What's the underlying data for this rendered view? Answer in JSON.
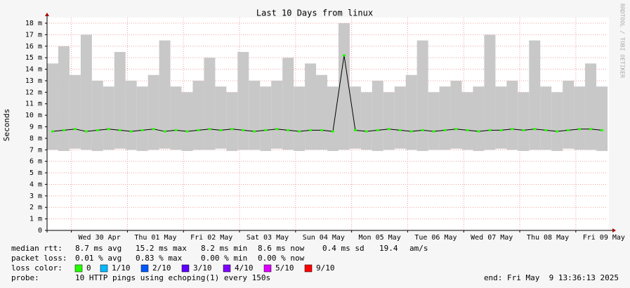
{
  "chart_data": {
    "type": "smoke",
    "title": "Last 10 Days from linux",
    "y_label": "Seconds",
    "side_label": "RRDTOOL / TOBI OETIKER",
    "xlim": [
      0,
      10
    ],
    "xticks": [
      {
        "value": 0.434,
        "label": "Wed 30 Apr"
      },
      {
        "value": 1.434,
        "label": "Thu 01 May"
      },
      {
        "value": 2.434,
        "label": "Fri 02 May"
      },
      {
        "value": 3.434,
        "label": "Sat 03 May"
      },
      {
        "value": 4.434,
        "label": "Sun 04 May"
      },
      {
        "value": 5.434,
        "label": "Mon 05 May"
      },
      {
        "value": 6.434,
        "label": "Tue 06 May"
      },
      {
        "value": 7.434,
        "label": "Wed 07 May"
      },
      {
        "value": 8.434,
        "label": "Thu 08 May"
      },
      {
        "value": 9.434,
        "label": "Fri 09 May"
      }
    ],
    "ylim": [
      0,
      0.018
    ],
    "yticks": [
      0,
      {
        "value": 0.001,
        "label": "1 m"
      },
      {
        "value": 0.002,
        "label": "2 m"
      },
      {
        "value": 0.003,
        "label": "3 m"
      },
      {
        "value": 0.004,
        "label": "4 m"
      },
      {
        "value": 0.005,
        "label": "5 m"
      },
      {
        "value": 0.006,
        "label": "6 m"
      },
      {
        "value": 0.007,
        "label": "7 m"
      },
      {
        "value": 0.008,
        "label": "8 m"
      },
      {
        "value": 0.009,
        "label": "9 m"
      },
      {
        "value": 0.01,
        "label": "10 m"
      },
      {
        "value": 0.011,
        "label": "11 m"
      },
      {
        "value": 0.012,
        "label": "12 m"
      },
      {
        "value": 0.013,
        "label": "13 m"
      },
      {
        "value": 0.014,
        "label": "14 m"
      },
      {
        "value": 0.015,
        "label": "15 m"
      },
      {
        "value": 0.016,
        "label": "16 m"
      },
      {
        "value": 0.017,
        "label": "17 m"
      },
      {
        "value": 0.018,
        "label": "18 m"
      }
    ],
    "grid": true,
    "smoke_color": "#c8c8c8",
    "line_color": "#000000",
    "dot_color": "#26ff00",
    "x": [
      0,
      0.2,
      0.4,
      0.6,
      0.8,
      1,
      1.2,
      1.4,
      1.6,
      1.8,
      2,
      2.2,
      2.4,
      2.6,
      2.8,
      3,
      3.2,
      3.4,
      3.6,
      3.8,
      4,
      4.2,
      4.4,
      4.6,
      4.8,
      5,
      5.2,
      5.4,
      5.6,
      5.8,
      6,
      6.2,
      6.4,
      6.6,
      6.8,
      7,
      7.2,
      7.4,
      7.6,
      7.8,
      8,
      8.2,
      8.4,
      8.6,
      8.8,
      9,
      9.2,
      9.4,
      9.6,
      9.8
    ],
    "values": [
      0.0086,
      0.0087,
      0.0088,
      0.0086,
      0.0087,
      0.0088,
      0.0087,
      0.0086,
      0.0087,
      0.0088,
      0.0086,
      0.0087,
      0.0086,
      0.0087,
      0.0088,
      0.0087,
      0.0088,
      0.0087,
      0.0086,
      0.0087,
      0.0088,
      0.0087,
      0.0086,
      0.0087,
      0.0087,
      0.0086,
      0.0152,
      0.0087,
      0.0086,
      0.0087,
      0.0088,
      0.0087,
      0.0086,
      0.0087,
      0.0086,
      0.0087,
      0.0088,
      0.0087,
      0.0086,
      0.0087,
      0.0087,
      0.0088,
      0.0087,
      0.0088,
      0.0087,
      0.0086,
      0.0087,
      0.0088,
      0.0088,
      0.0087
    ],
    "upper": [
      0.0145,
      0.016,
      0.0135,
      0.017,
      0.013,
      0.0125,
      0.0155,
      0.013,
      0.0125,
      0.0135,
      0.0165,
      0.0125,
      0.012,
      0.013,
      0.015,
      0.0125,
      0.012,
      0.0155,
      0.013,
      0.0125,
      0.013,
      0.015,
      0.0125,
      0.0145,
      0.0135,
      0.0125,
      0.018,
      0.0125,
      0.012,
      0.013,
      0.012,
      0.0125,
      0.0135,
      0.0165,
      0.012,
      0.0125,
      0.013,
      0.012,
      0.0125,
      0.017,
      0.0125,
      0.013,
      0.012,
      0.0165,
      0.0125,
      0.012,
      0.013,
      0.0125,
      0.0145,
      0.0125
    ],
    "lower": [
      0.007,
      0.0069,
      0.0071,
      0.007,
      0.0069,
      0.007,
      0.0071,
      0.007,
      0.0069,
      0.007,
      0.0071,
      0.007,
      0.0069,
      0.007,
      0.007,
      0.0071,
      0.0069,
      0.007,
      0.007,
      0.0069,
      0.0071,
      0.007,
      0.0069,
      0.007,
      0.007,
      0.0069,
      0.007,
      0.0071,
      0.007,
      0.0069,
      0.007,
      0.0071,
      0.007,
      0.0069,
      0.007,
      0.007,
      0.0071,
      0.007,
      0.0069,
      0.007,
      0.0071,
      0.007,
      0.0069,
      0.007,
      0.007,
      0.0069,
      0.0071,
      0.007,
      0.007,
      0.0069
    ]
  },
  "legend": {
    "median": [
      "median rtt:",
      "8.7 ms avg",
      "15.2 ms max",
      "8.2 ms min",
      "8.6 ms now",
      "0.4 ms sd",
      "19.4",
      "am/s"
    ],
    "loss": [
      "packet loss:",
      "0.01 % avg",
      "0.83 % max",
      "0.00 % min",
      "0.00 % now"
    ],
    "loss_color_label": "loss color:",
    "loss_colors": [
      {
        "label": "0",
        "color": "#26ff00"
      },
      {
        "label": "1/10",
        "color": "#00b8ff"
      },
      {
        "label": "2/10",
        "color": "#0059ff"
      },
      {
        "label": "3/10",
        "color": "#5e00ff"
      },
      {
        "label": "4/10",
        "color": "#7e00ff"
      },
      {
        "label": "5/10",
        "color": "#dd00ff"
      },
      {
        "label": "9/10",
        "color": "#ff0000"
      }
    ],
    "probe_label": "probe:",
    "probe": "10 HTTP pings using echoping(1) every 150s",
    "end": "end: Fri May  9 13:36:13 2025"
  }
}
